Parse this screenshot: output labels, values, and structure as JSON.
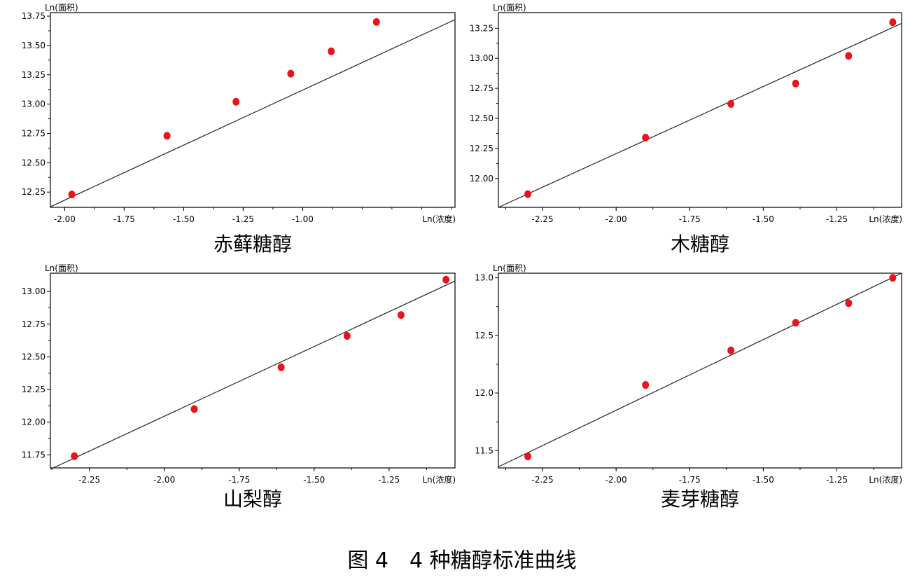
{
  "figure_caption": "图 4　4 种糖醇标准曲线",
  "colors": {
    "marker": "#e8131b",
    "line": "#222222",
    "axis": "#000000"
  },
  "chart_data": [
    {
      "type": "scatter",
      "title": "赤藓糖醇",
      "xlabel": "Ln(浓度)",
      "ylabel": "Ln(面积)",
      "xlim": [
        -2.06,
        -0.36
      ],
      "ylim": [
        12.12,
        13.78
      ],
      "xticks": [
        "-2.00",
        "-1.75",
        "-1.50",
        "-1.25",
        "-1.00"
      ],
      "xtick_values": [
        -2.0,
        -1.75,
        -1.5,
        -1.25,
        -1.0
      ],
      "yticks": [
        "12.25",
        "12.50",
        "12.75",
        "13.00",
        "13.25",
        "13.50",
        "13.75"
      ],
      "ytick_values": [
        12.25,
        12.5,
        12.75,
        13.0,
        13.25,
        13.5,
        13.75
      ],
      "points": {
        "x": [
          -1.97,
          -1.57,
          -1.28,
          -1.05,
          -0.88,
          -0.69
        ],
        "y": [
          12.23,
          12.73,
          13.02,
          13.26,
          13.45,
          13.7
        ]
      },
      "fit_line": {
        "x": [
          -2.06,
          -0.36
        ],
        "y": [
          12.125,
          13.72
        ]
      },
      "grid": false
    },
    {
      "type": "scatter",
      "title": "木糖醇",
      "xlabel": "Ln(浓度)",
      "ylabel": "Ln(面积)",
      "xlim": [
        -2.4,
        -1.03
      ],
      "ylim": [
        11.76,
        13.38
      ],
      "xticks": [
        "-2.25",
        "-2.00",
        "-1.75",
        "-1.50",
        "-1.25"
      ],
      "xtick_values": [
        -2.25,
        -2.0,
        -1.75,
        -1.5,
        -1.25
      ],
      "yticks": [
        "12.00",
        "12.25",
        "12.50",
        "12.75",
        "13.00",
        "13.25"
      ],
      "ytick_values": [
        12.0,
        12.25,
        12.5,
        12.75,
        13.0,
        13.25
      ],
      "points": {
        "x": [
          -2.3,
          -1.9,
          -1.61,
          -1.39,
          -1.21,
          -1.06
        ],
        "y": [
          11.87,
          12.34,
          12.62,
          12.79,
          13.02,
          13.3
        ]
      },
      "fit_line": {
        "x": [
          -2.4,
          -1.03
        ],
        "y": [
          11.76,
          13.29
        ]
      },
      "grid": false
    },
    {
      "type": "scatter",
      "title": "山梨醇",
      "xlabel": "Ln(浓度)",
      "ylabel": "Ln(面积)",
      "xlim": [
        -2.38,
        -1.03
      ],
      "ylim": [
        11.65,
        13.14
      ],
      "xticks": [
        "-2.25",
        "-2.00",
        "-1.75",
        "-1.50",
        "-1.25"
      ],
      "xtick_values": [
        -2.25,
        -2.0,
        -1.75,
        -1.5,
        -1.25
      ],
      "yticks": [
        "11.75",
        "12.00",
        "12.25",
        "12.50",
        "12.75",
        "13.00"
      ],
      "ytick_values": [
        11.75,
        12.0,
        12.25,
        12.5,
        12.75,
        13.0
      ],
      "points": {
        "x": [
          -2.3,
          -1.9,
          -1.61,
          -1.39,
          -1.21,
          -1.06
        ],
        "y": [
          11.74,
          12.1,
          12.42,
          12.66,
          12.82,
          13.09
        ]
      },
      "fit_line": {
        "x": [
          -2.38,
          -1.03
        ],
        "y": [
          11.64,
          13.08
        ]
      },
      "grid": false
    },
    {
      "type": "scatter",
      "title": "麦芽糖醇",
      "xlabel": "Ln(浓度)",
      "ylabel": "Ln(面积)",
      "xlim": [
        -2.4,
        -1.03
      ],
      "ylim": [
        11.35,
        13.04
      ],
      "xticks": [
        "-2.25",
        "-2.00",
        "-1.75",
        "-1.50",
        "-1.25"
      ],
      "xtick_values": [
        -2.25,
        -2.0,
        -1.75,
        -1.5,
        -1.25
      ],
      "yticks": [
        "11.5",
        "12.0",
        "12.5",
        "13.0"
      ],
      "ytick_values": [
        11.5,
        12.0,
        12.5,
        13.0
      ],
      "points": {
        "x": [
          -2.3,
          -1.9,
          -1.61,
          -1.39,
          -1.21,
          -1.06
        ],
        "y": [
          11.45,
          12.07,
          12.37,
          12.61,
          12.78,
          13.0
        ]
      },
      "fit_line": {
        "x": [
          -2.4,
          -1.03
        ],
        "y": [
          11.36,
          13.04
        ]
      },
      "grid": false
    }
  ]
}
